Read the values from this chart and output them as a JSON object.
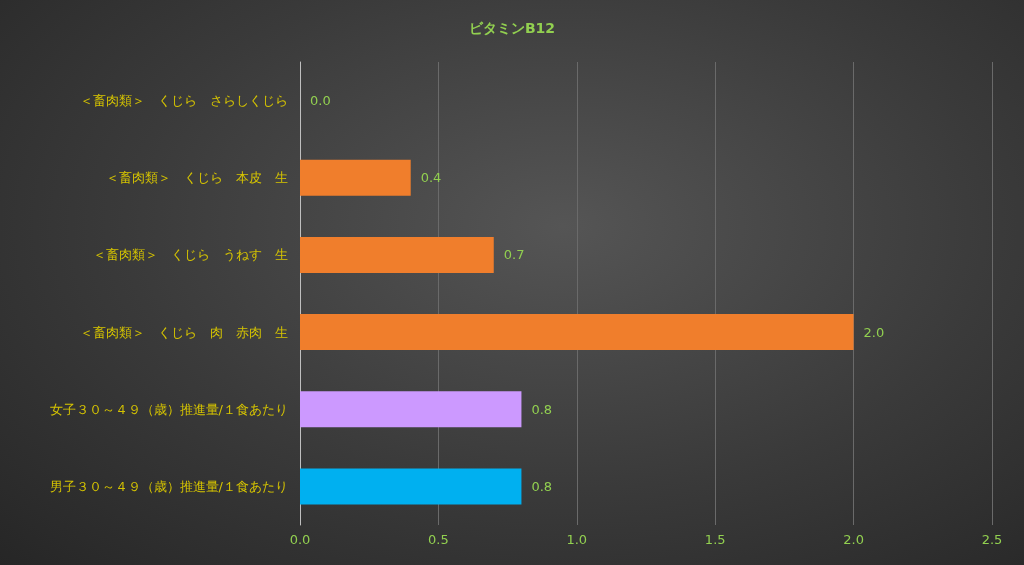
{
  "chart_data": {
    "type": "bar",
    "orientation": "horizontal",
    "title": "ビタミンB12",
    "categories": [
      "＜畜肉類＞　くじら　さらしくじら",
      "＜畜肉類＞　くじら　本皮　生",
      "＜畜肉類＞　くじら　うねす　生",
      "＜畜肉類＞　くじら　肉　赤肉　生",
      "女子３０～４９（歳）推進量/１食あたり",
      "男子３０～４９（歳）推進量/１食あたり"
    ],
    "values": [
      0,
      0.4,
      0.7,
      2.0,
      0.8,
      0.8
    ],
    "colors": [
      "#f07e2c",
      "#f07e2c",
      "#f07e2c",
      "#f07e2c",
      "#cc99ff",
      "#00b0f0"
    ],
    "value_labels": [
      "0.0",
      "0.4",
      "0.7",
      "2.0",
      "0.8",
      "0.8"
    ],
    "xlim": [
      0,
      2.5
    ],
    "xticks": [
      {
        "value": 0,
        "label": "0.0"
      },
      {
        "value": 0.5,
        "label": "0.5"
      },
      {
        "value": 1,
        "label": "1.0"
      },
      {
        "value": 1.5,
        "label": "1.5"
      },
      {
        "value": 2,
        "label": "2.0"
      },
      {
        "value": 2.5,
        "label": "2.5"
      }
    ],
    "grid": "x"
  }
}
